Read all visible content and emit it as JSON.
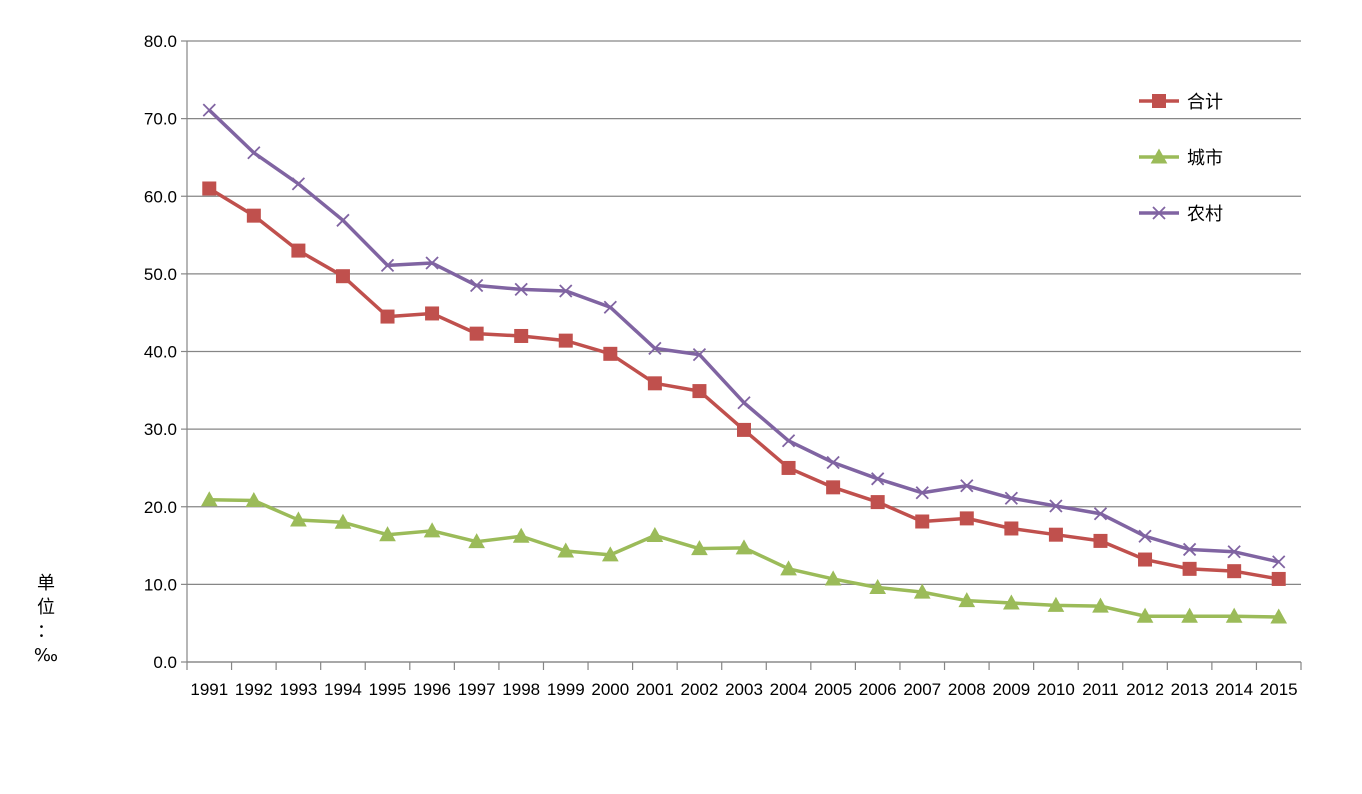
{
  "chart_data": {
    "type": "line",
    "title": "",
    "xlabel": "",
    "ylabel": "单位：‰",
    "ylim": [
      0,
      80
    ],
    "yticks": [
      "0.0",
      "10.0",
      "20.0",
      "30.0",
      "40.0",
      "50.0",
      "60.0",
      "70.0",
      "80.0"
    ],
    "grid": true,
    "legend_position": "top-right",
    "categories": [
      "1991",
      "1992",
      "1993",
      "1994",
      "1995",
      "1996",
      "1997",
      "1998",
      "1999",
      "2000",
      "2001",
      "2002",
      "2003",
      "2004",
      "2005",
      "2006",
      "2007",
      "2008",
      "2009",
      "2010",
      "2011",
      "2012",
      "2013",
      "2014",
      "2015"
    ],
    "series": [
      {
        "name": "合计",
        "color": "#c0504d",
        "marker": "square",
        "values": [
          61.0,
          57.5,
          53.0,
          49.7,
          44.5,
          44.9,
          42.3,
          42.0,
          41.4,
          39.7,
          35.9,
          34.9,
          29.9,
          25.0,
          22.5,
          20.6,
          18.1,
          18.5,
          17.2,
          16.4,
          15.6,
          13.2,
          12.0,
          11.7,
          10.7
        ]
      },
      {
        "name": "城市",
        "color": "#9bbb59",
        "marker": "triangle",
        "values": [
          20.9,
          20.8,
          18.3,
          18.0,
          16.4,
          16.9,
          15.5,
          16.2,
          14.3,
          13.8,
          16.3,
          14.6,
          14.7,
          12.0,
          10.7,
          9.6,
          9.0,
          7.9,
          7.6,
          7.3,
          7.2,
          5.9,
          5.9,
          5.9,
          5.8
        ]
      },
      {
        "name": "农村",
        "color": "#8064a2",
        "marker": "x",
        "values": [
          71.1,
          65.6,
          61.6,
          56.9,
          51.1,
          51.4,
          48.5,
          48.0,
          47.8,
          45.7,
          40.4,
          39.6,
          33.4,
          28.5,
          25.7,
          23.6,
          21.8,
          22.7,
          21.1,
          20.1,
          19.1,
          16.2,
          14.5,
          14.2,
          12.9
        ]
      }
    ]
  },
  "ylabel_lines": [
    "单",
    "位",
    "：",
    "‰"
  ]
}
